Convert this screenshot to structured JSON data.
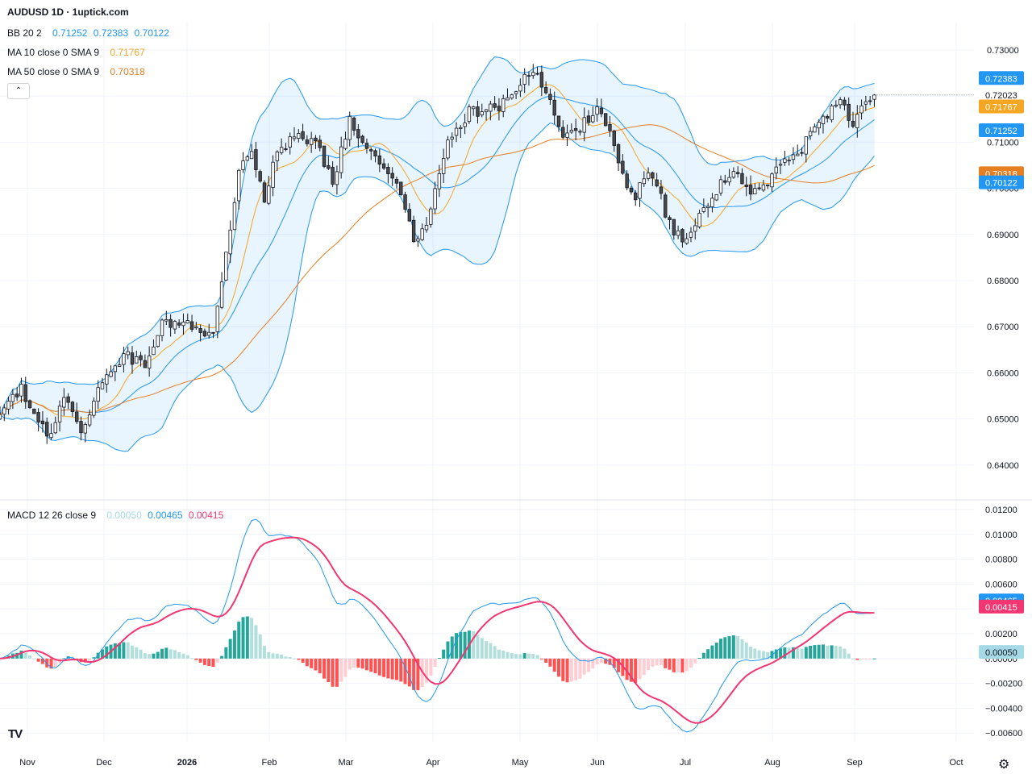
{
  "header": {
    "title": "AUDUSD 1D · 1uptick.com",
    "collapse_symbol": "⌃"
  },
  "legends": {
    "bb": {
      "label": "BB 20 2",
      "values": [
        "0.71252",
        "0.72383",
        "0.70122"
      ],
      "color": "#2196f3"
    },
    "ma10": {
      "label": "MA 10 close 0 SMA 9",
      "value": "0.71767",
      "color": "#f5a623"
    },
    "ma50": {
      "label": "MA 50 close 0 SMA 9",
      "value": "0.70318",
      "color": "#e67e22"
    },
    "macd": {
      "label": "MACD 12 26 close 9",
      "values": [
        "0.00050",
        "0.00465",
        "0.00415"
      ],
      "colors": [
        "#a5d9e6",
        "#2196f3",
        "#f23672"
      ]
    }
  },
  "branding": {
    "logo_text": "TV",
    "settings_icon": "gear-icon"
  },
  "chart_data": [
    {
      "type": "candlestick",
      "title": "AUDUSD 1D",
      "x_axis": {
        "labels": [
          "Nov",
          "Dec",
          "2026",
          "Feb",
          "Mar",
          "Apr",
          "May",
          "Jun",
          "Jul",
          "Aug",
          "Sep",
          "Oct"
        ]
      },
      "y_axis": {
        "ticks": [
          "0.73000",
          "0.72000",
          "0.71000",
          "0.70000",
          "0.69000",
          "0.68000",
          "0.67000",
          "0.66000",
          "0.65000",
          "0.64000"
        ],
        "range": [
          0.6355,
          0.7335
        ]
      },
      "price_labels": [
        {
          "text": "0.72383",
          "value": 0.72383,
          "kind": "bb_upper",
          "color": "#2196f3"
        },
        {
          "text": "0.72023",
          "value": 0.72023,
          "kind": "last",
          "color": "#ffffff"
        },
        {
          "text": "0.71767",
          "value": 0.71767,
          "kind": "ma10",
          "color": "#f5a623"
        },
        {
          "text": "0.71252",
          "value": 0.71252,
          "kind": "bb_basis",
          "color": "#2196f3"
        },
        {
          "text": "0.70318",
          "value": 0.70318,
          "kind": "ma50",
          "color": "#e67e22"
        },
        {
          "text": "0.70122",
          "value": 0.70122,
          "kind": "bb_lower",
          "color": "#2196f3"
        }
      ],
      "close_anchors": [
        [
          0,
          0.6515
        ],
        [
          3,
          0.6545
        ],
        [
          5,
          0.6565
        ],
        [
          8,
          0.6505
        ],
        [
          12,
          0.6465
        ],
        [
          15,
          0.6555
        ],
        [
          19,
          0.6475
        ],
        [
          23,
          0.6555
        ],
        [
          27,
          0.6615
        ],
        [
          30,
          0.6635
        ],
        [
          34,
          0.6615
        ],
        [
          38,
          0.6705
        ],
        [
          42,
          0.6715
        ],
        [
          46,
          0.6695
        ],
        [
          50,
          0.6685
        ],
        [
          53,
          0.6855
        ],
        [
          56,
          0.7045
        ],
        [
          59,
          0.7085
        ],
        [
          62,
          0.6965
        ],
        [
          64,
          0.7055
        ],
        [
          67,
          0.7095
        ],
        [
          70,
          0.7115
        ],
        [
          74,
          0.7095
        ],
        [
          78,
          0.7015
        ],
        [
          82,
          0.7155
        ],
        [
          86,
          0.7085
        ],
        [
          90,
          0.7045
        ],
        [
          94,
          0.6985
        ],
        [
          97,
          0.6895
        ],
        [
          100,
          0.6915
        ],
        [
          103,
          0.7025
        ],
        [
          106,
          0.7125
        ],
        [
          110,
          0.7165
        ],
        [
          114,
          0.7165
        ],
        [
          118,
          0.7185
        ],
        [
          122,
          0.7225
        ],
        [
          125,
          0.7255
        ],
        [
          128,
          0.7215
        ],
        [
          131,
          0.7125
        ],
        [
          134,
          0.7115
        ],
        [
          137,
          0.7145
        ],
        [
          140,
          0.7165
        ],
        [
          143,
          0.7135
        ],
        [
          146,
          0.7025
        ],
        [
          149,
          0.6985
        ],
        [
          152,
          0.7035
        ],
        [
          155,
          0.6975
        ],
        [
          158,
          0.6895
        ],
        [
          161,
          0.6895
        ],
        [
          164,
          0.6935
        ],
        [
          167,
          0.6965
        ],
        [
          170,
          0.7025
        ],
        [
          173,
          0.7025
        ],
        [
          176,
          0.6995
        ],
        [
          179,
          0.7005
        ],
        [
          182,
          0.7045
        ],
        [
          185,
          0.7065
        ],
        [
          188,
          0.7085
        ],
        [
          191,
          0.7125
        ],
        [
          194,
          0.7165
        ],
        [
          197,
          0.7185
        ],
        [
          200,
          0.7145
        ],
        [
          203,
          0.7195
        ],
        [
          205,
          0.72023
        ]
      ]
    },
    {
      "type": "macd",
      "title": "MACD 12 26 close 9",
      "y_axis": {
        "ticks": [
          "0.01200",
          "0.01000",
          "0.00800",
          "0.00600",
          "0.00400",
          "0.00200",
          "0.00000",
          "−0.00200",
          "−0.00400",
          "−0.00600"
        ],
        "range": [
          -0.0065,
          0.0125
        ]
      },
      "value_labels": [
        {
          "text": "0.00465",
          "value": 0.00465,
          "kind": "macd",
          "color": "#2196f3"
        },
        {
          "text": "0.00415",
          "value": 0.00415,
          "kind": "signal",
          "color": "#f23672"
        },
        {
          "text": "0.00050",
          "value": 0.0005,
          "kind": "histogram",
          "color": "#a5d9e6"
        }
      ]
    }
  ]
}
